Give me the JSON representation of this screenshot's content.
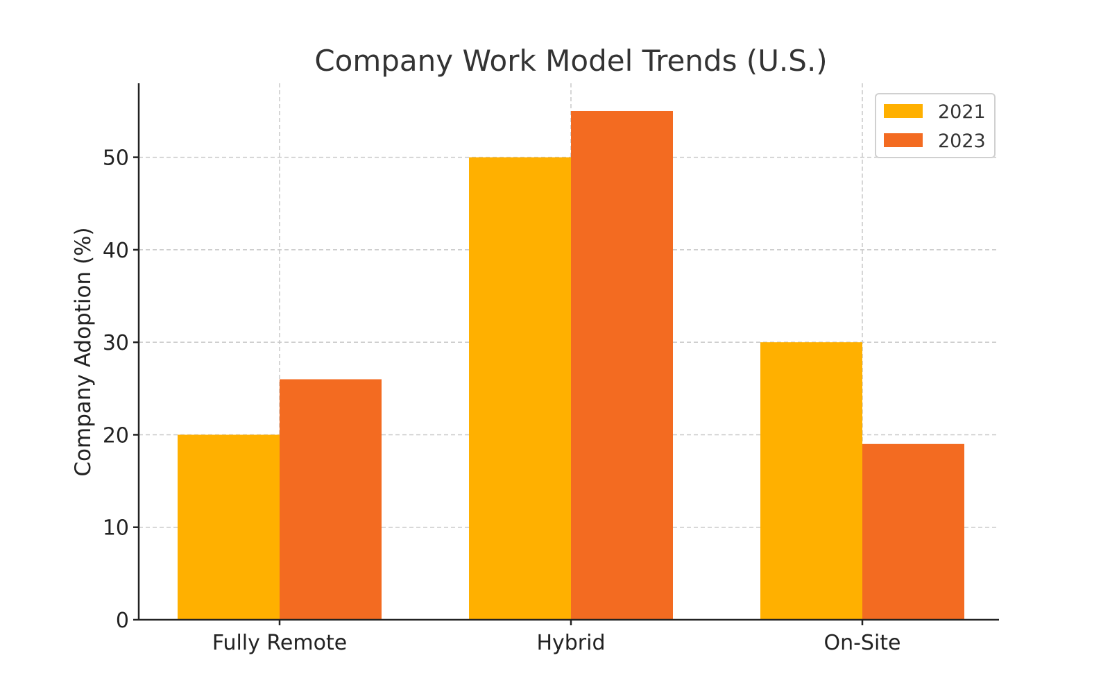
{
  "chart_data": {
    "type": "bar",
    "title": "Company Work Model Trends (U.S.)",
    "xlabel": "",
    "ylabel": "Company Adoption (%)",
    "categories": [
      "Fully Remote",
      "Hybrid",
      "On-Site"
    ],
    "series": [
      {
        "name": "2021",
        "values": [
          20,
          50,
          30
        ],
        "color": "#FFB000"
      },
      {
        "name": "2023",
        "values": [
          26,
          55,
          19
        ],
        "color": "#F36B21"
      }
    ],
    "ylim": [
      0,
      58
    ],
    "yticks": [
      0,
      10,
      20,
      30,
      40,
      50
    ],
    "grid": true,
    "legend": "top-right"
  }
}
